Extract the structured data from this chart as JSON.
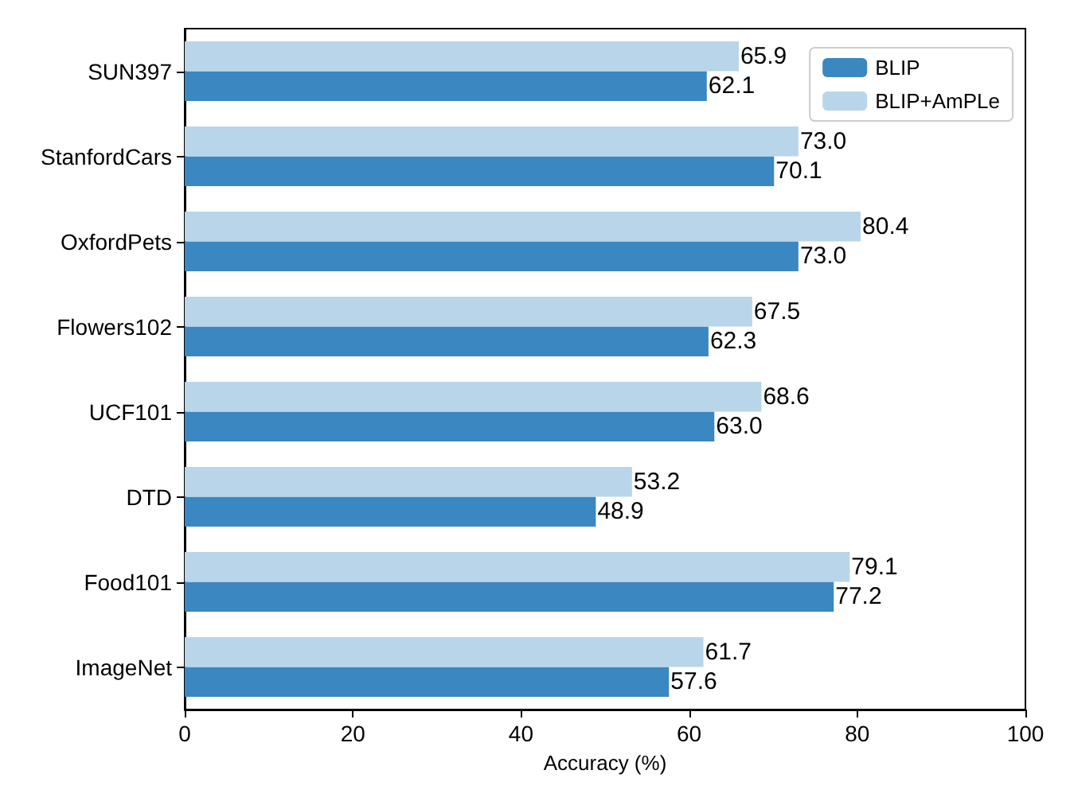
{
  "chart_data": {
    "type": "bar",
    "orientation": "horizontal",
    "xlabel": "Accuracy (%)",
    "categories": [
      "SUN397",
      "StanfordCars",
      "OxfordPets",
      "Flowers102",
      "UCF101",
      "DTD",
      "Food101",
      "ImageNet"
    ],
    "series": [
      {
        "name": "BLIP",
        "color": "#3a87c1",
        "values": [
          62.1,
          70.1,
          73.0,
          62.3,
          63.0,
          48.9,
          77.2,
          57.6
        ],
        "value_labels": [
          "62.1",
          "70.1",
          "73.0",
          "62.3",
          "63.0",
          "48.9",
          "77.2",
          "57.6"
        ]
      },
      {
        "name": "BLIP+AmPLe",
        "color": "#b9d5e9",
        "values": [
          65.9,
          73.0,
          80.4,
          67.5,
          68.6,
          53.2,
          79.1,
          61.7
        ],
        "value_labels": [
          "65.9",
          "73.0",
          "80.4",
          "67.5",
          "68.6",
          "53.2",
          "79.1",
          "61.7"
        ]
      }
    ],
    "xlim": [
      0,
      100
    ],
    "xticks": [
      0,
      20,
      40,
      60,
      80,
      100
    ],
    "legend": "top right",
    "grid": false
  }
}
